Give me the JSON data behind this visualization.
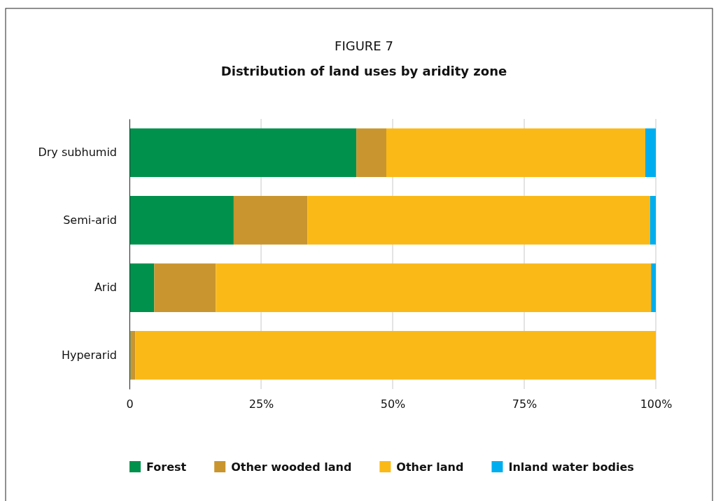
{
  "chart_data": {
    "type": "bar",
    "title": "FIGURE 7",
    "subtitle": "Distribution of land uses by aridity zone",
    "orientation": "horizontal",
    "stacked": true,
    "categories": [
      "Dry subhumid",
      "Semi-arid",
      "Arid",
      "Hyperarid"
    ],
    "series": [
      {
        "name": "Forest",
        "color": "#00914c",
        "values": [
          43.1,
          19.8,
          4.7,
          0.2
        ]
      },
      {
        "name": "Other wooded land",
        "color": "#c9952e",
        "values": [
          5.7,
          14.0,
          11.7,
          0.9
        ]
      },
      {
        "name": "Other land",
        "color": "#fbb917",
        "values": [
          49.2,
          65.1,
          82.7,
          98.9
        ]
      },
      {
        "name": "Inland water bodies",
        "color": "#00aeef",
        "values": [
          2.0,
          1.1,
          0.9,
          0
        ]
      }
    ],
    "xlim": [
      0,
      100
    ],
    "xticks": [
      0,
      {
        "value": 25,
        "label": "25%"
      },
      {
        "value": 50,
        "label": "50%"
      },
      {
        "value": 75,
        "label": "75%"
      },
      {
        "value": 100,
        "label": "100%"
      }
    ],
    "grid": "x",
    "legend": "bottom"
  }
}
